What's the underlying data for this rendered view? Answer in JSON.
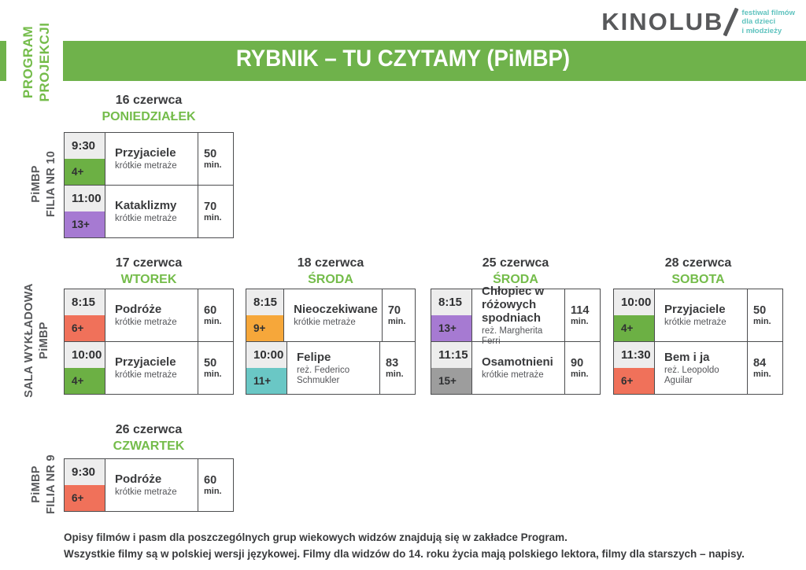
{
  "brand": {
    "logo_text": "KINOLUB",
    "logo_mark": "\\",
    "tagline_lines": [
      "festiwal filmów",
      "dla dzieci",
      "i młodzieży"
    ],
    "teal": "#5fc3bf",
    "dark_gray": "#58595b"
  },
  "sidebar_title": {
    "line1": "PROGRAM",
    "line2": "PROJEKCJI"
  },
  "banner": {
    "title": "RYBNIK – TU CZYTAMY (PiMBP)",
    "green": "#6fb24b"
  },
  "heading_green": "#74bc4a",
  "age_colors": {
    "green": "#6cb044",
    "purple": "#a67ad2",
    "red": "#f0715a",
    "orange": "#f6a73a",
    "teal": "#6ac7c5",
    "gray": "#9d9d9d"
  },
  "labels": {
    "minutes": "min."
  },
  "groups": [
    {
      "venue_lines": [
        "PiMBP",
        "FILIA NR 10"
      ],
      "columns": [
        {
          "date": "16 czerwca",
          "day": "PONIEDZIAŁEK",
          "screenings": [
            {
              "time": "9:30",
              "age": "4+",
              "age_color": "green",
              "title": "Przyjaciele",
              "subtitle": "krótkie metraże",
              "duration": "50"
            },
            {
              "time": "11:00",
              "age": "13+",
              "age_color": "purple",
              "title": "Kataklizmy",
              "subtitle": "krótkie metraże",
              "duration": "70"
            }
          ]
        }
      ]
    },
    {
      "venue_lines": [
        "SALA WYKŁADOWA",
        "PiMBP"
      ],
      "columns": [
        {
          "date": "17 czerwca",
          "day": "WTOREK",
          "screenings": [
            {
              "time": "8:15",
              "age": "6+",
              "age_color": "red",
              "title": "Podróże",
              "subtitle": "krótkie metraże",
              "duration": "60"
            },
            {
              "time": "10:00",
              "age": "4+",
              "age_color": "green",
              "title": "Przyjaciele",
              "subtitle": "krótkie metraże",
              "duration": "50"
            }
          ]
        },
        {
          "date": "18 czerwca",
          "day": "ŚRODA",
          "screenings": [
            {
              "time": "8:15",
              "age": "9+",
              "age_color": "orange",
              "title": "Nieoczekiwane",
              "subtitle": "krótkie metraże",
              "duration": "70"
            },
            {
              "time": "10:00",
              "age": "11+",
              "age_color": "teal",
              "title": "Felipe",
              "subtitle": "reż. Federico Schmukler",
              "duration": "83"
            }
          ]
        },
        {
          "date": "25 czerwca",
          "day": "ŚRODA",
          "screenings": [
            {
              "time": "8:15",
              "age": "13+",
              "age_color": "purple",
              "title": "Chłopiec w różowych spodniach",
              "subtitle": "reż. Margherita Ferri",
              "duration": "114"
            },
            {
              "time": "11:15",
              "age": "15+",
              "age_color": "gray",
              "title": "Osamotnieni",
              "subtitle": "krótkie metraże",
              "duration": "90"
            }
          ]
        },
        {
          "date": "28 czerwca",
          "day": "SOBOTA",
          "screenings": [
            {
              "time": "10:00",
              "age": "4+",
              "age_color": "green",
              "title": "Przyjaciele",
              "subtitle": "krótkie metraże",
              "duration": "50"
            },
            {
              "time": "11:30",
              "age": "6+",
              "age_color": "red",
              "title": "Bem i ja",
              "subtitle": "reż. Leopoldo Aguilar",
              "duration": "84"
            }
          ]
        }
      ]
    },
    {
      "venue_lines": [
        "PiMBP",
        "FILIA NR 9"
      ],
      "columns": [
        {
          "date": "26 czerwca",
          "day": "CZWARTEK",
          "screenings": [
            {
              "time": "9:30",
              "age": "6+",
              "age_color": "red",
              "title": "Podróże",
              "subtitle": "krótkie metraże",
              "duration": "60"
            }
          ]
        }
      ]
    }
  ],
  "footer": {
    "line1": "Opisy filmów i pasm dla poszczególnych grup wiekowych widzów znajdują się w zakładce Program.",
    "line2": "Wszystkie filmy są w polskiej wersji językowej. Filmy dla widzów do 14. roku życia mają polskiego lektora, filmy dla starszych – napisy."
  }
}
